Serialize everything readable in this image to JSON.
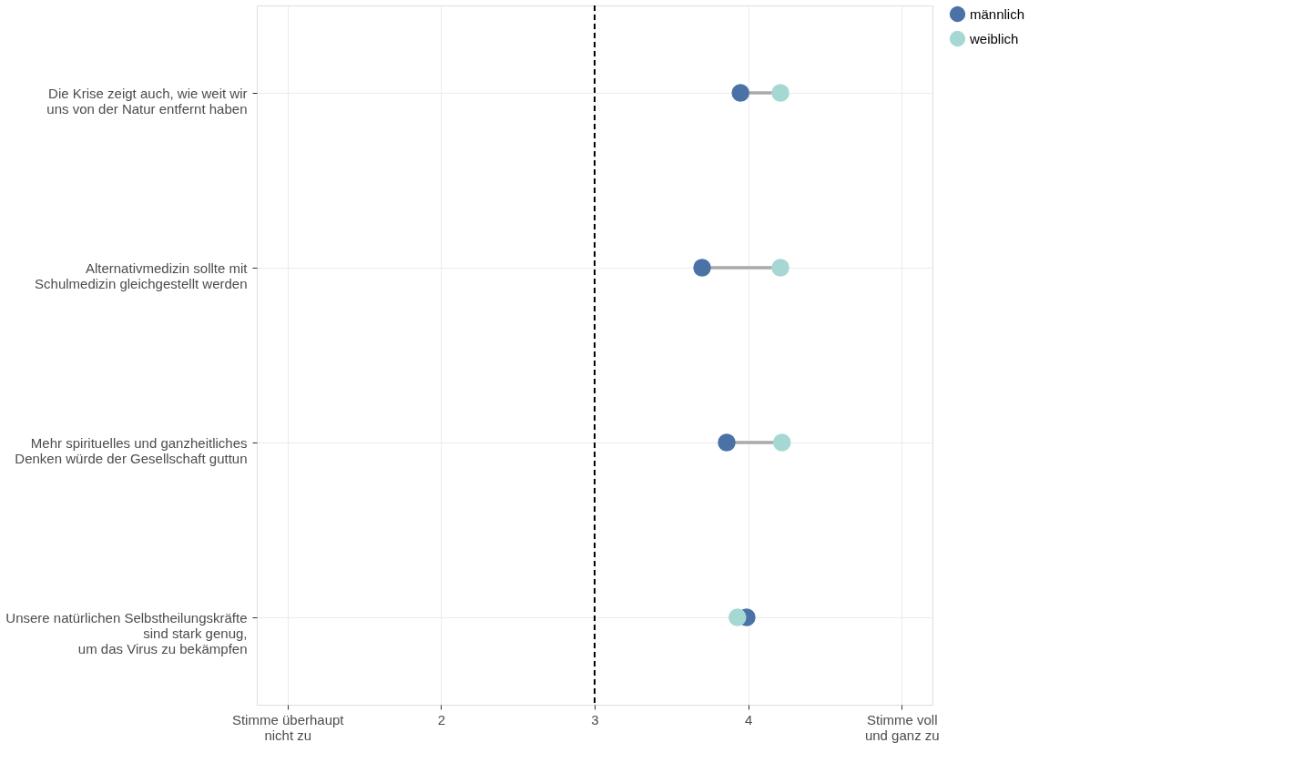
{
  "chart_data": {
    "type": "scatter",
    "orientation": "horizontal",
    "categories": [
      "Die Krise zeigt auch, wie weit wir\nuns von der Natur entfernt haben",
      "Alternativmedizin sollte mit\nSchulmedizin gleichgestellt werden",
      "Mehr spirituelles und ganzheitliches\nDenken würde der Gesellschaft guttun",
      "Unsere natürlichen Selbstheilungskräfte\nsind stark genug,\num das Virus zu bekämpfen"
    ],
    "series": [
      {
        "name": "männlich",
        "color": "#4a72a6",
        "values": [
          3.95,
          3.7,
          3.86,
          3.99
        ]
      },
      {
        "name": "weiblich",
        "color": "#a5d8d3",
        "values": [
          4.21,
          4.21,
          4.22,
          3.93
        ]
      }
    ],
    "xlim": [
      0.8,
      5.2
    ],
    "xticks": [
      {
        "value": 1,
        "label": "Stimme überhaupt\nnicht zu"
      },
      2,
      3,
      4,
      {
        "value": 5,
        "label": "Stimme voll\nund ganz zu"
      }
    ],
    "ref_lines": [
      {
        "axis": "x",
        "value": 3,
        "label": null,
        "color": "#000000",
        "line_style": "dashed"
      }
    ],
    "grid": true,
    "legend": "right",
    "marker": "circle"
  }
}
